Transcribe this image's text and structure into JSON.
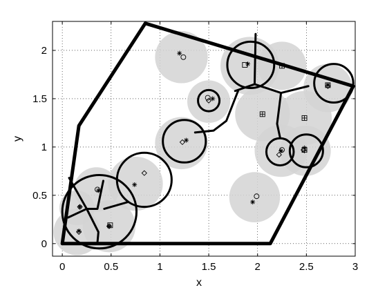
{
  "chart_data": {
    "type": "scatter",
    "title": "",
    "xlabel": "x",
    "ylabel": "y",
    "xlim": [
      -0.1,
      3.0
    ],
    "ylim": [
      -0.13,
      2.3
    ],
    "grid": true,
    "grid_style": "dotted",
    "x_ticks": [
      {
        "v": 0,
        "label": "0"
      },
      {
        "v": 0.5,
        "label": "0.5"
      },
      {
        "v": 1,
        "label": "1"
      },
      {
        "v": 1.5,
        "label": "1.5"
      },
      {
        "v": 2,
        "label": "2"
      },
      {
        "v": 2.5,
        "label": "2.5"
      },
      {
        "v": 3,
        "label": "3"
      }
    ],
    "y_ticks": [
      {
        "v": 0,
        "label": "0"
      },
      {
        "v": 0.5,
        "label": "0.5"
      },
      {
        "v": 1,
        "label": "1"
      },
      {
        "v": 1.5,
        "label": "1.5"
      },
      {
        "v": 2,
        "label": "2"
      }
    ],
    "colors": {
      "coverage": "#d3d3d3",
      "boundary": "#000000"
    },
    "boundary_polygon": [
      [
        0,
        0
      ],
      [
        0.17,
        1.22
      ],
      [
        0.85,
        2.28
      ],
      [
        2.98,
        1.63
      ],
      [
        2.13,
        0
      ],
      [
        0,
        0
      ]
    ],
    "coverage_disks": [
      {
        "x": 0.15,
        "y": 0.37,
        "r": 0.18
      },
      {
        "x": 0.35,
        "y": 0.56,
        "r": 0.23
      },
      {
        "x": 0.15,
        "y": 0.12,
        "r": 0.24
      },
      {
        "x": 0.48,
        "y": 0.18,
        "r": 0.27
      },
      {
        "x": 0.75,
        "y": 0.62,
        "r": 0.28
      },
      {
        "x": 1.22,
        "y": 1.04,
        "r": 0.27
      },
      {
        "x": 1.22,
        "y": 1.93,
        "r": 0.27
      },
      {
        "x": 1.5,
        "y": 1.47,
        "r": 0.22
      },
      {
        "x": 1.97,
        "y": 0.48,
        "r": 0.26
      },
      {
        "x": 1.92,
        "y": 1.84,
        "r": 0.3
      },
      {
        "x": 2.25,
        "y": 1.84,
        "r": 0.25
      },
      {
        "x": 2.05,
        "y": 1.34,
        "r": 0.28
      },
      {
        "x": 2.48,
        "y": 1.3,
        "r": 0.28
      },
      {
        "x": 2.24,
        "y": 0.96,
        "r": 0.27
      },
      {
        "x": 2.49,
        "y": 0.96,
        "r": 0.26
      },
      {
        "x": 2.72,
        "y": 1.61,
        "r": 0.25
      }
    ],
    "region_circles": [
      {
        "x": 0.38,
        "y": 0.33,
        "r": 0.38
      },
      {
        "x": 0.84,
        "y": 0.66,
        "r": 0.28
      },
      {
        "x": 1.25,
        "y": 1.06,
        "r": 0.22
      },
      {
        "x": 1.5,
        "y": 1.48,
        "r": 0.11
      },
      {
        "x": 2.23,
        "y": 0.95,
        "r": 0.14
      },
      {
        "x": 2.5,
        "y": 0.96,
        "r": 0.17
      },
      {
        "x": 2.78,
        "y": 1.66,
        "r": 0.2
      },
      {
        "x": 1.93,
        "y": 1.85,
        "r": 0.24
      }
    ],
    "partition_edges": [
      [
        [
          0.07,
          0.68
        ],
        [
          0.25,
          0.36
        ],
        [
          0.36,
          0.36
        ],
        [
          0.42,
          0.65
        ]
      ],
      [
        [
          0.25,
          0.36
        ],
        [
          0.06,
          0.27
        ]
      ],
      [
        [
          0.25,
          0.36
        ],
        [
          0.37,
          0.12
        ],
        [
          0.36,
          0.01
        ]
      ],
      [
        [
          0.43,
          0.36
        ],
        [
          0.67,
          0.43
        ]
      ],
      [
        [
          1.98,
          2.17
        ],
        [
          1.97,
          1.65
        ]
      ],
      [
        [
          1.97,
          1.65
        ],
        [
          1.77,
          1.58
        ]
      ],
      [
        [
          1.97,
          1.65
        ],
        [
          2.24,
          1.56
        ]
      ],
      [
        [
          2.24,
          1.56
        ],
        [
          2.52,
          1.63
        ]
      ],
      [
        [
          2.24,
          1.56
        ],
        [
          2.2,
          1.24
        ],
        [
          2.23,
          1.1
        ]
      ],
      [
        [
          1.8,
          1.58
        ],
        [
          1.68,
          1.27
        ],
        [
          1.55,
          1.17
        ],
        [
          1.36,
          1.15
        ]
      ]
    ],
    "series": [
      {
        "marker": "diamond",
        "points": [
          [
            0.18,
            0.38
          ],
          [
            0.17,
            0.12
          ],
          [
            0.48,
            0.18
          ],
          [
            0.84,
            0.73
          ],
          [
            1.23,
            1.05
          ],
          [
            1.5,
            1.48
          ],
          [
            2.22,
            0.92
          ],
          [
            2.47,
            0.97
          ],
          [
            2.72,
            1.63
          ]
        ]
      },
      {
        "marker": "asterisk",
        "points": [
          [
            0.18,
            0.38
          ],
          [
            0.37,
            0.55
          ],
          [
            0.17,
            0.13
          ],
          [
            0.48,
            0.18
          ],
          [
            0.74,
            0.61
          ],
          [
            1.27,
            1.07
          ],
          [
            1.2,
            1.97
          ],
          [
            1.54,
            1.5
          ],
          [
            1.9,
            1.86
          ],
          [
            1.95,
            0.43
          ],
          [
            2.24,
            0.96
          ],
          [
            2.48,
            0.99
          ],
          [
            2.72,
            1.64
          ]
        ]
      },
      {
        "marker": "circle",
        "points": [
          [
            0.36,
            0.56
          ],
          [
            1.24,
            1.93
          ],
          [
            1.49,
            1.51
          ],
          [
            1.99,
            0.49
          ],
          [
            2.25,
            0.97
          ]
        ]
      },
      {
        "marker": "square",
        "points": [
          [
            0.49,
            0.19
          ],
          [
            1.87,
            1.85
          ],
          [
            2.25,
            1.84
          ],
          [
            2.05,
            1.34
          ],
          [
            2.48,
            1.3
          ],
          [
            2.48,
            0.97
          ],
          [
            2.72,
            1.64
          ]
        ]
      },
      {
        "marker": "plus",
        "points": [
          [
            2.25,
            1.84
          ],
          [
            2.05,
            1.34
          ],
          [
            2.48,
            1.3
          ],
          [
            2.48,
            0.96
          ]
        ]
      }
    ]
  }
}
